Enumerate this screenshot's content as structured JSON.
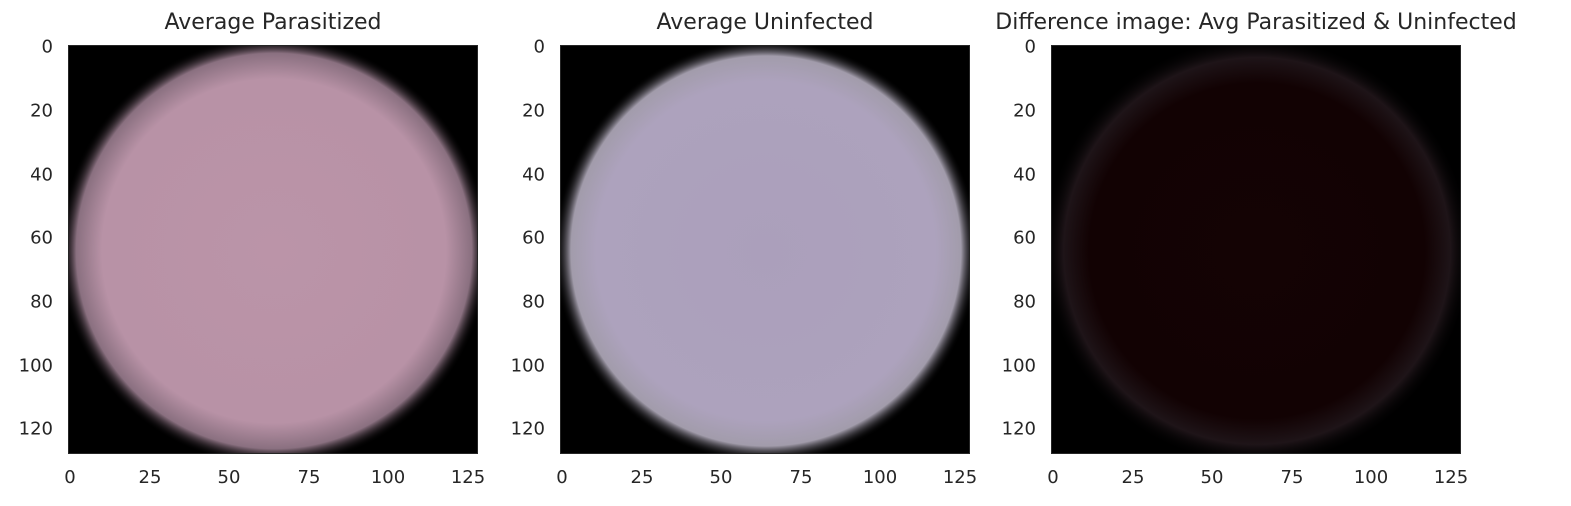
{
  "panels": [
    {
      "title": "Average Parasitized",
      "x_ticks": [
        "0",
        "25",
        "50",
        "75",
        "100",
        "125"
      ],
      "y_ticks": [
        "0",
        "20",
        "40",
        "60",
        "80",
        "100",
        "120"
      ],
      "cell_color": "#bb94a8",
      "background_color": "#000000"
    },
    {
      "title": "Average Uninfected",
      "x_ticks": [
        "0",
        "25",
        "50",
        "75",
        "100",
        "125"
      ],
      "y_ticks": [
        "0",
        "20",
        "40",
        "60",
        "80",
        "100",
        "120"
      ],
      "cell_color": "#ab9fbb",
      "background_color": "#000000"
    },
    {
      "title": "Difference image: Avg Parasitized & Uninfected",
      "x_ticks": [
        "0",
        "25",
        "50",
        "75",
        "100",
        "125"
      ],
      "y_ticks": [
        "0",
        "20",
        "40",
        "60",
        "80",
        "100",
        "120"
      ],
      "cell_color": "#140304",
      "background_color": "#000000"
    }
  ]
}
